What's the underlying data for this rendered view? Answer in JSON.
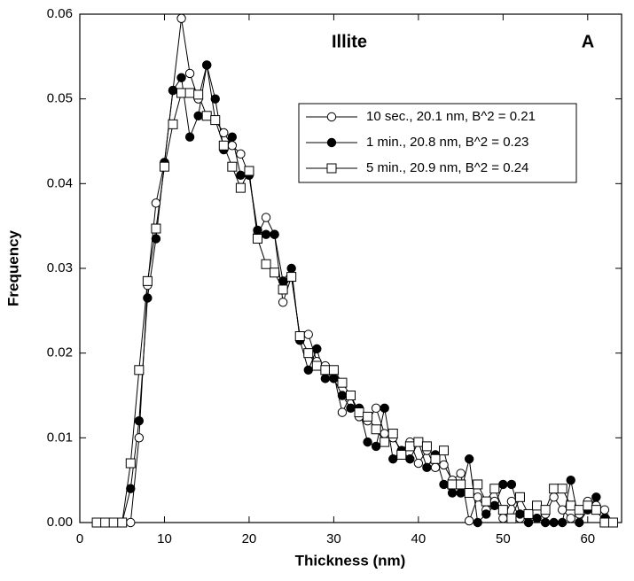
{
  "chart_data": {
    "type": "line",
    "annotations": [
      "Illite",
      "A"
    ],
    "x_label": "Thickness  (nm)",
    "y_label": "Frequency",
    "x": [
      2,
      3,
      4,
      5,
      6,
      7,
      8,
      9,
      10,
      11,
      12,
      13,
      14,
      15,
      16,
      17,
      18,
      19,
      20,
      21,
      22,
      23,
      24,
      25,
      26,
      27,
      28,
      29,
      30,
      31,
      32,
      33,
      34,
      35,
      36,
      37,
      38,
      39,
      40,
      41,
      42,
      43,
      44,
      45,
      46,
      47,
      48,
      49,
      50,
      51,
      52,
      53,
      54,
      55,
      56,
      57,
      58,
      59,
      60,
      61,
      62,
      63
    ],
    "series": [
      {
        "name": "10 sec., 20.1 nm, B^2 = 0.21",
        "color": "#000000",
        "marker": "circle",
        "marker_fill": "#ffffff",
        "values": [
          0,
          0,
          0,
          0,
          0,
          0.01,
          0.028,
          0.0377,
          0.0425,
          0.051,
          0.0595,
          0.053,
          0.05,
          0.054,
          0.0475,
          0.046,
          0.0445,
          0.0435,
          0.041,
          0.034,
          0.036,
          0.034,
          0.026,
          0.029,
          0.022,
          0.0222,
          0.019,
          0.0185,
          0.0175,
          0.013,
          0.015,
          0.0125,
          0.012,
          0.0135,
          0.0105,
          0.01,
          0.0085,
          0.0095,
          0.007,
          0.0085,
          0.0065,
          0.0068,
          0.005,
          0.0058,
          0.0002,
          0.003,
          0.0015,
          0.0025,
          0.0005,
          0.0025,
          0.0005,
          0.001,
          0.0005,
          0.001,
          0.003,
          0.0015,
          0.0005,
          0.001,
          0.0025,
          0.002,
          0.0015,
          0
        ]
      },
      {
        "name": "1 min., 20.8 nm, B^2 = 0.23",
        "color": "#000000",
        "marker": "circle",
        "marker_fill": "#000000",
        "values": [
          0,
          0,
          0,
          0,
          0.004,
          0.012,
          0.0265,
          0.0335,
          0.0425,
          0.051,
          0.0525,
          0.0455,
          0.048,
          0.054,
          0.05,
          0.044,
          0.0455,
          0.041,
          0.041,
          0.0345,
          0.034,
          0.034,
          0.0285,
          0.03,
          0.0215,
          0.018,
          0.0205,
          0.017,
          0.017,
          0.015,
          0.0135,
          0.0135,
          0.0095,
          0.009,
          0.0135,
          0.0075,
          0.0085,
          0.0075,
          0.0095,
          0.0065,
          0.008,
          0.0045,
          0.0035,
          0.0035,
          0.0075,
          0,
          0.001,
          0.002,
          0.0045,
          0.0045,
          0.001,
          0,
          0.0005,
          0,
          0,
          0,
          0.005,
          0,
          0.0015,
          0.003,
          0.0005,
          0
        ]
      },
      {
        "name": "5 min., 20.9 nm, B^2 = 0.24",
        "color": "#000000",
        "marker": "square",
        "marker_fill": "#ffffff",
        "values": [
          0,
          0,
          0,
          0,
          0.007,
          0.018,
          0.0285,
          0.0347,
          0.042,
          0.047,
          0.0507,
          0.0507,
          0.0505,
          0.048,
          0.0475,
          0.0445,
          0.042,
          0.0395,
          0.0415,
          0.0335,
          0.0305,
          0.0295,
          0.0275,
          0.029,
          0.022,
          0.02,
          0.0185,
          0.018,
          0.018,
          0.0165,
          0.015,
          0.013,
          0.0125,
          0.011,
          0.0095,
          0.0105,
          0.008,
          0.009,
          0.0095,
          0.009,
          0.0075,
          0.0085,
          0.0045,
          0.0045,
          0.0035,
          0.0045,
          0.0025,
          0.004,
          0.0015,
          0.0005,
          0.003,
          0.001,
          0.002,
          0.0015,
          0.004,
          0.004,
          0.002,
          0.0015,
          0.002,
          0.0015,
          0,
          0
        ]
      }
    ],
    "xlim": [
      0,
      64
    ],
    "xticks": [
      0,
      10,
      20,
      30,
      40,
      50,
      60
    ],
    "ylim": [
      0,
      0.06
    ],
    "yticks": [
      {
        "value": 0,
        "label": "0.00"
      },
      {
        "value": 0.01,
        "label": "0.01"
      },
      {
        "value": 0.02,
        "label": "0.02"
      },
      {
        "value": 0.03,
        "label": "0.03"
      },
      {
        "value": 0.04,
        "label": "0.04"
      },
      {
        "value": 0.05,
        "label": "0.05"
      },
      {
        "value": 0.06,
        "label": "0.06"
      }
    ],
    "grid": false,
    "legend": "upper right"
  }
}
